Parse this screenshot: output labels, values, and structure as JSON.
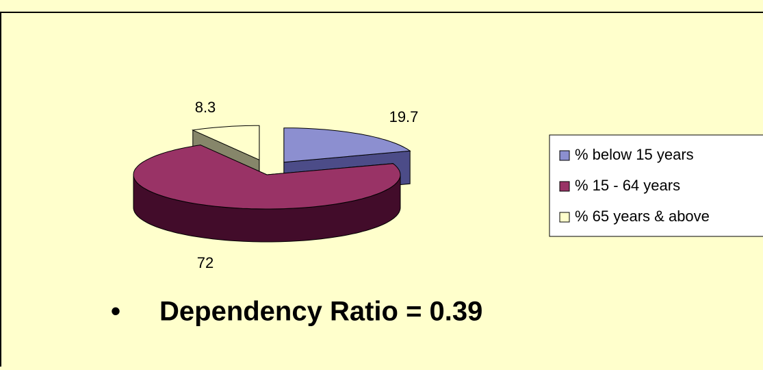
{
  "chart_data": {
    "type": "pie",
    "categories": [
      "% below 15 years",
      "% 15 - 64 years",
      "% 65 years & above"
    ],
    "values": [
      19.7,
      72,
      8.3
    ],
    "colors": [
      "#8c8fd0",
      "#993366",
      "#ffffcc"
    ],
    "side_colors": [
      "#4c4c88",
      "#420c2a",
      "#86866a"
    ],
    "legend": "right",
    "annotation": "Dependency Ratio = 0.39"
  }
}
